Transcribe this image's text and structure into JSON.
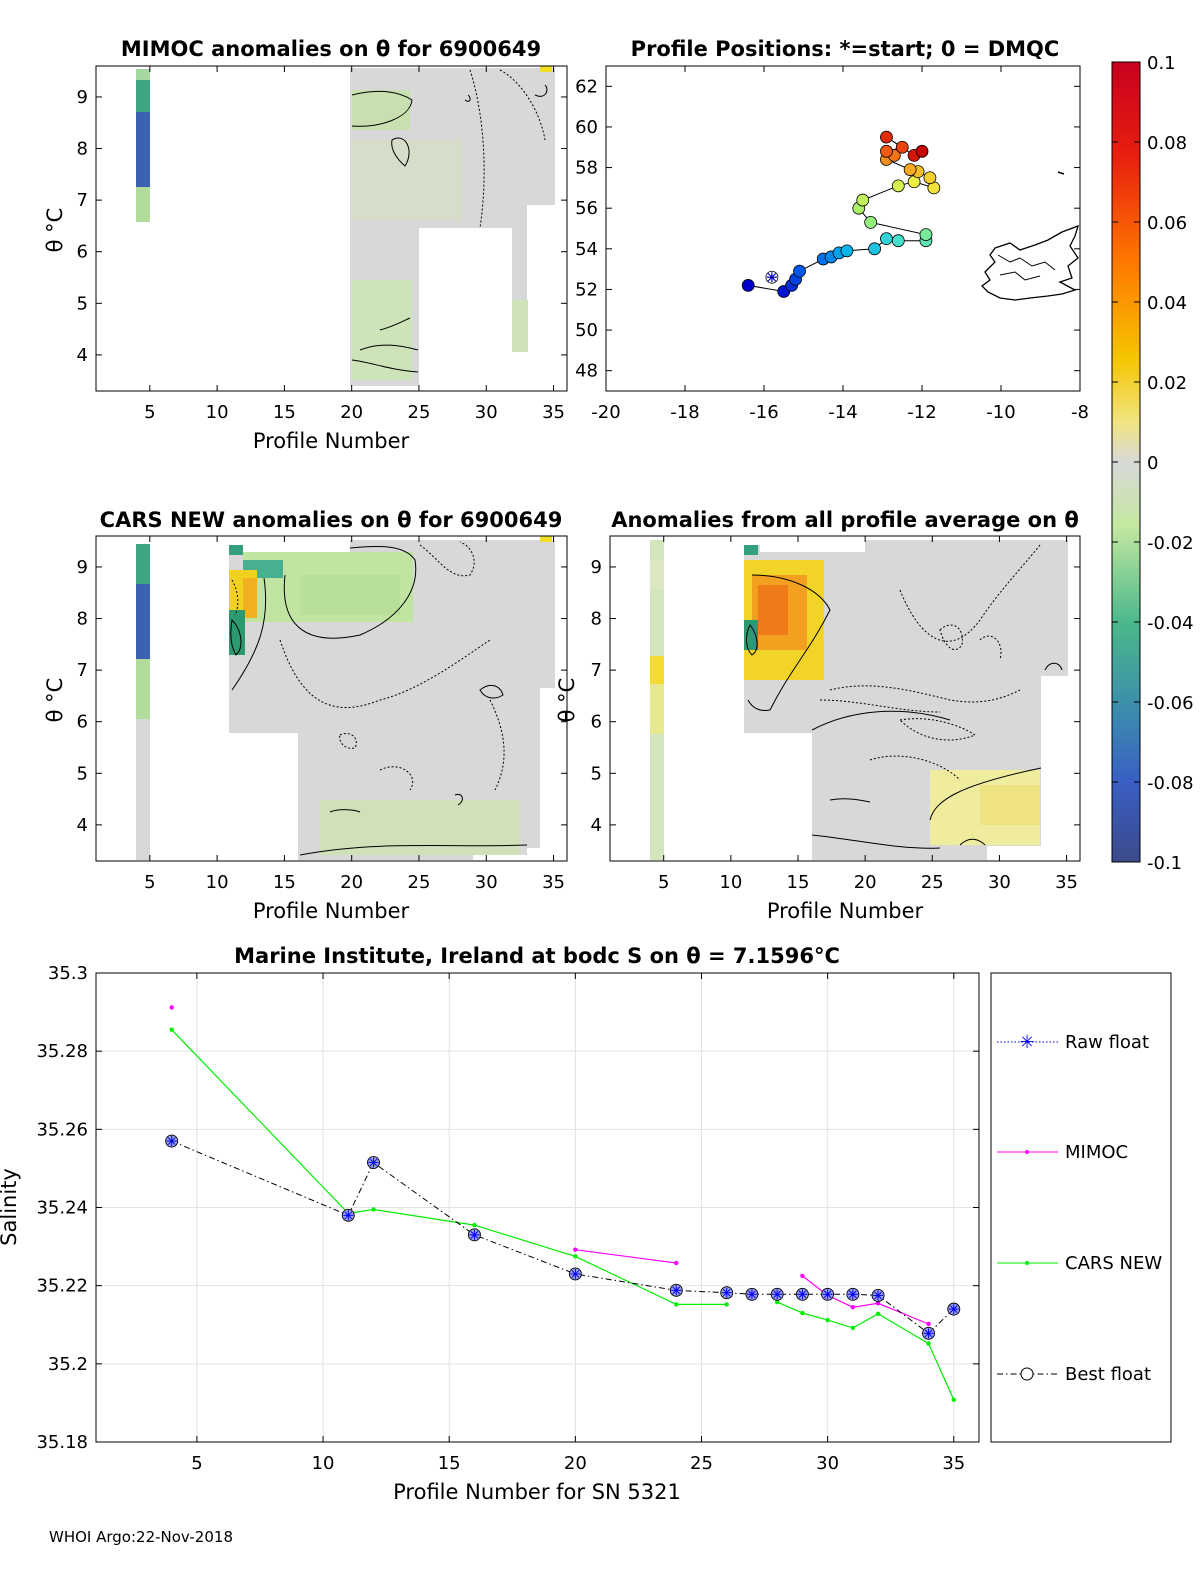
{
  "footer": "WHOI Argo:22-Nov-2018",
  "colors": {
    "raw": "#0000ff",
    "mimoc": "#ff00ff",
    "cars": "#00ee00",
    "best": "#000000",
    "best_fill": "#9aa0e6"
  },
  "colorbar": {
    "ticks": [
      "0.1",
      "0.08",
      "0.06",
      "0.04",
      "0.02",
      "0",
      "-0.02",
      "-0.04",
      "-0.06",
      "-0.08",
      "-0.1"
    ],
    "stops": [
      "#c8001e",
      "#ff5a00",
      "#f2c800",
      "#eeeec0",
      "#d8d8d8",
      "#c2e8a0",
      "#3aa882",
      "#3a62c0",
      "#3a4a8e"
    ]
  },
  "chart_data": [
    {
      "type": "heatmap",
      "id": "mimoc",
      "title": "MIMOC anomalies on θ  for 6900649",
      "xlabel": "Profile Number",
      "ylabel": "θ °C",
      "xlim": [
        1,
        36
      ],
      "ylim": [
        3.3,
        9.6
      ],
      "xticks": [
        "5",
        "10",
        "15",
        "20",
        "25",
        "30",
        "35"
      ],
      "yticks": [
        "4",
        "5",
        "6",
        "7",
        "8",
        "9"
      ]
    },
    {
      "type": "scatter",
      "id": "positions",
      "title": "Profile Positions: *=start; 0 = DMQC",
      "xlim": [
        -20,
        -8
      ],
      "ylim": [
        47,
        63
      ],
      "xticks": [
        "-20",
        "-18",
        "-16",
        "-14",
        "-12",
        "-10",
        "-8"
      ],
      "yticks": [
        "48",
        "50",
        "52",
        "54",
        "56",
        "58",
        "60",
        "62"
      ],
      "start": {
        "lon": -15.8,
        "lat": 52.6
      },
      "points": [
        {
          "lon": -16.4,
          "lat": 52.2
        },
        {
          "lon": -15.5,
          "lat": 51.9
        },
        {
          "lon": -15.3,
          "lat": 52.2
        },
        {
          "lon": -15.2,
          "lat": 52.5
        },
        {
          "lon": -15.1,
          "lat": 52.9
        },
        {
          "lon": -14.5,
          "lat": 53.5
        },
        {
          "lon": -14.3,
          "lat": 53.6
        },
        {
          "lon": -14.1,
          "lat": 53.8
        },
        {
          "lon": -13.9,
          "lat": 53.9
        },
        {
          "lon": -13.2,
          "lat": 54.0
        },
        {
          "lon": -12.9,
          "lat": 54.5
        },
        {
          "lon": -12.6,
          "lat": 54.4
        },
        {
          "lon": -11.9,
          "lat": 54.4
        },
        {
          "lon": -11.9,
          "lat": 54.7
        },
        {
          "lon": -13.3,
          "lat": 55.3
        },
        {
          "lon": -13.6,
          "lat": 56.0
        },
        {
          "lon": -13.5,
          "lat": 56.4
        },
        {
          "lon": -12.6,
          "lat": 57.1
        },
        {
          "lon": -12.2,
          "lat": 57.3
        },
        {
          "lon": -11.7,
          "lat": 57.0
        },
        {
          "lon": -11.8,
          "lat": 57.5
        },
        {
          "lon": -12.1,
          "lat": 57.8
        },
        {
          "lon": -12.3,
          "lat": 57.9
        },
        {
          "lon": -12.9,
          "lat": 58.4
        },
        {
          "lon": -12.7,
          "lat": 58.6
        },
        {
          "lon": -12.9,
          "lat": 58.8
        },
        {
          "lon": -12.5,
          "lat": 59.0
        },
        {
          "lon": -12.9,
          "lat": 59.5
        },
        {
          "lon": -12.2,
          "lat": 58.6
        },
        {
          "lon": -12.0,
          "lat": 58.8
        }
      ]
    },
    {
      "type": "heatmap",
      "id": "cars",
      "title": "CARS NEW anomalies on θ for 6900649",
      "xlabel": "Profile Number",
      "ylabel": "θ °C",
      "xlim": [
        1,
        36
      ],
      "ylim": [
        3.3,
        9.6
      ],
      "xticks": [
        "5",
        "10",
        "15",
        "20",
        "25",
        "30",
        "35"
      ],
      "yticks": [
        "4",
        "5",
        "6",
        "7",
        "8",
        "9"
      ]
    },
    {
      "type": "heatmap",
      "id": "allavg",
      "title": "Anomalies from all profile average on θ",
      "xlabel": "Profile Number",
      "ylabel": "θ °C",
      "xlim": [
        1,
        36
      ],
      "ylim": [
        3.3,
        9.6
      ],
      "xticks": [
        "5",
        "10",
        "15",
        "20",
        "25",
        "30",
        "35"
      ],
      "yticks": [
        "4",
        "5",
        "6",
        "7",
        "8",
        "9"
      ]
    },
    {
      "type": "line",
      "id": "salinity",
      "title": "Marine Institute, Ireland at bodc S on θ = 7.1596°C",
      "xlabel": "Profile Number for SN 5321",
      "ylabel": "Salinity",
      "xlim": [
        1,
        36
      ],
      "ylim": [
        35.18,
        35.3
      ],
      "xticks": [
        "5",
        "10",
        "15",
        "20",
        "25",
        "30",
        "35"
      ],
      "yticks": [
        "35.3",
        "35.28",
        "35.26",
        "35.24",
        "35.22",
        "35.2",
        "35.18"
      ],
      "legend": [
        "Raw float",
        "MIMOC",
        "CARS NEW",
        "Best float"
      ],
      "series": [
        {
          "name": "Best float",
          "segments": [
            [
              [
                4,
                35.257
              ],
              [
                11,
                35.238
              ],
              [
                12,
                35.2515
              ],
              [
                16,
                35.233
              ],
              [
                20,
                35.223
              ],
              [
                24,
                35.2188
              ],
              [
                26,
                35.2182
              ],
              [
                27,
                35.2178
              ],
              [
                28,
                35.2178
              ],
              [
                29,
                35.2178
              ],
              [
                30,
                35.2178
              ],
              [
                31,
                35.2178
              ],
              [
                32,
                35.2175
              ],
              [
                34,
                35.2078
              ],
              [
                35,
                35.214
              ]
            ]
          ]
        },
        {
          "name": "MIMOC",
          "segments": [
            [
              [
                4,
                35.2912
              ]
            ],
            [
              [
                20,
                35.2292
              ],
              [
                24,
                35.2258
              ]
            ],
            [
              [
                29,
                35.2225
              ],
              [
                30,
                35.2175
              ],
              [
                31,
                35.2145
              ],
              [
                32,
                35.2155
              ],
              [
                34,
                35.2102
              ]
            ]
          ]
        },
        {
          "name": "CARS NEW",
          "segments": [
            [
              [
                4,
                35.2855
              ],
              [
                11,
                35.2385
              ],
              [
                12,
                35.2395
              ],
              [
                16,
                35.2355
              ],
              [
                20,
                35.2275
              ],
              [
                24,
                35.2152
              ],
              [
                26,
                35.2152
              ]
            ],
            [
              [
                28,
                35.2158
              ],
              [
                29,
                35.213
              ],
              [
                30,
                35.2112
              ],
              [
                31,
                35.2092
              ],
              [
                32,
                35.2128
              ],
              [
                34,
                35.2052
              ],
              [
                35,
                35.1908
              ]
            ]
          ]
        }
      ]
    }
  ]
}
